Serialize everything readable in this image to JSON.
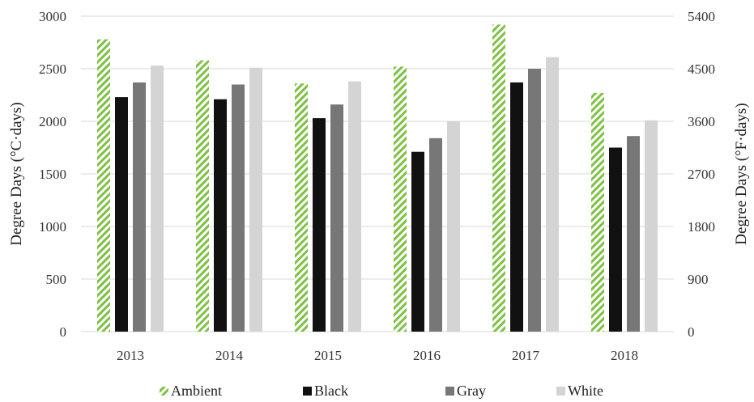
{
  "chart_data": {
    "type": "bar",
    "categories": [
      "2013",
      "2014",
      "2015",
      "2016",
      "2017",
      "2018"
    ],
    "series": [
      {
        "name": "Ambient",
        "values": [
          2780,
          2580,
          2360,
          2520,
          2920,
          2270
        ]
      },
      {
        "name": "Black",
        "values": [
          2230,
          2210,
          2030,
          1710,
          2370,
          1750
        ]
      },
      {
        "name": "Gray",
        "values": [
          2370,
          2350,
          2160,
          1840,
          2500,
          1860
        ]
      },
      {
        "name": "White",
        "values": [
          2530,
          2510,
          2380,
          2000,
          2610,
          2010
        ]
      }
    ],
    "ylabel": "Degree Days (°C·days)",
    "y2label": "Degree Days (°F·days)",
    "ylim": [
      0,
      3000
    ],
    "yticks": [
      "0",
      "500",
      "1000",
      "1500",
      "2000",
      "2500",
      "3000"
    ],
    "y2lim": [
      0,
      5400
    ],
    "y2ticks": [
      "0",
      "900",
      "1800",
      "2700",
      "3600",
      "4500",
      "5400"
    ],
    "grid": true,
    "legend_position": "bottom",
    "colors": {
      "Ambient": "#7dc142",
      "Black": "#111111",
      "Gray": "#777777",
      "White": "#d4d4d4"
    },
    "series_patterns": {
      "Ambient": "diagonal-hatch",
      "Black": "solid",
      "Gray": "solid",
      "White": "solid"
    }
  }
}
